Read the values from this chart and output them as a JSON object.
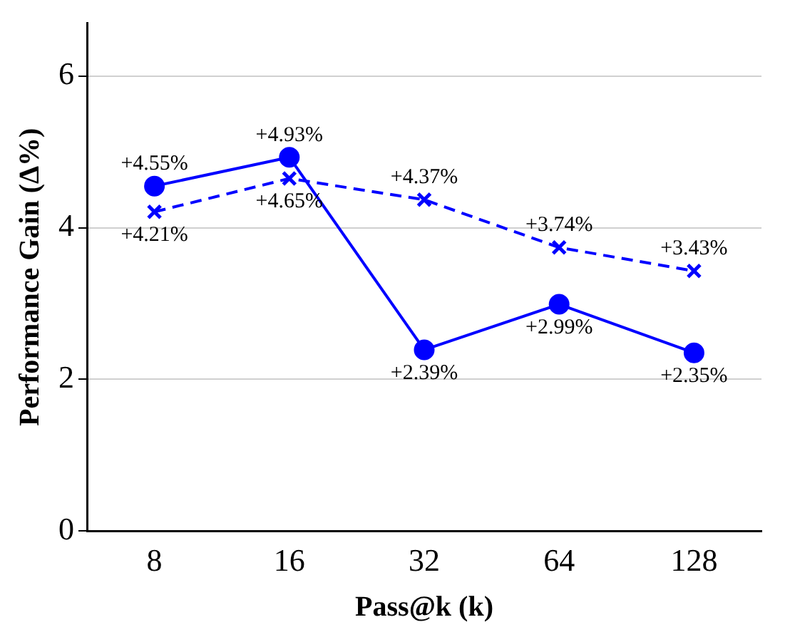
{
  "chart_data": {
    "type": "line",
    "xlabel": "Pass@k (k)",
    "ylabel": "Performance Gain (Δ%)",
    "categories": [
      "8",
      "16",
      "32",
      "64",
      "128"
    ],
    "series": [
      {
        "color": "#0000ff",
        "marker": "circle",
        "line_style": "solid",
        "values": [
          4.55,
          4.93,
          2.39,
          2.99,
          2.35
        ],
        "value_labels": [
          "+4.55%",
          "+4.93%",
          "+2.39%",
          "+2.99%",
          "+2.35%"
        ]
      },
      {
        "color": "#0000ff",
        "marker": "cross",
        "line_style": "dashed",
        "values": [
          4.21,
          4.65,
          4.37,
          3.74,
          3.43
        ],
        "value_labels": [
          "+4.21%",
          "+4.65%",
          "+4.37%",
          "+3.74%",
          "+3.43%"
        ]
      }
    ],
    "ylim": [
      0,
      6.7
    ],
    "yticks": [
      0,
      2,
      4,
      6
    ],
    "grid": "y",
    "legend": false
  }
}
